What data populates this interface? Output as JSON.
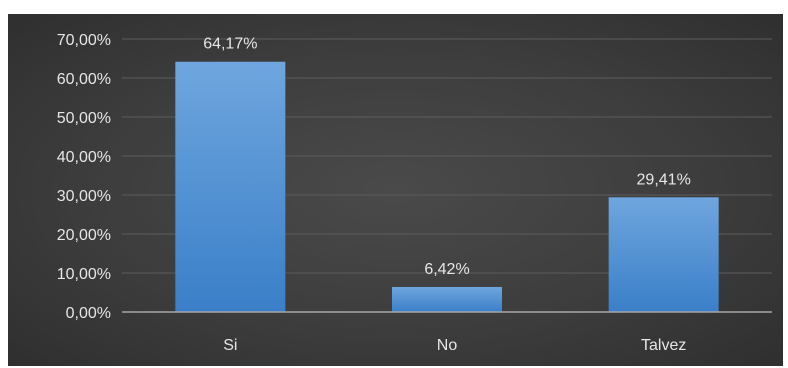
{
  "chart_data": {
    "type": "bar",
    "categories": [
      "Si",
      "No",
      "Talvez"
    ],
    "values": [
      64.17,
      6.42,
      29.41
    ],
    "data_labels": [
      "64,17%",
      "6,42%",
      "29,41%"
    ],
    "y_ticks": [
      {
        "value": 0,
        "label": "0,00%"
      },
      {
        "value": 10,
        "label": "10,00%"
      },
      {
        "value": 20,
        "label": "20,00%"
      },
      {
        "value": 30,
        "label": "30,00%"
      },
      {
        "value": 40,
        "label": "40,00%"
      },
      {
        "value": 50,
        "label": "50,00%"
      },
      {
        "value": 60,
        "label": "60,00%"
      },
      {
        "value": 70,
        "label": "70,00%"
      }
    ],
    "ylim": [
      0,
      70
    ],
    "title": "",
    "xlabel": "",
    "ylabel": "",
    "grid": true,
    "colors": {
      "bar_top": "#6fa6de",
      "bar_bottom": "#3a7fc8",
      "background": "#3d3d3d",
      "text": "#e6e6e6"
    }
  }
}
